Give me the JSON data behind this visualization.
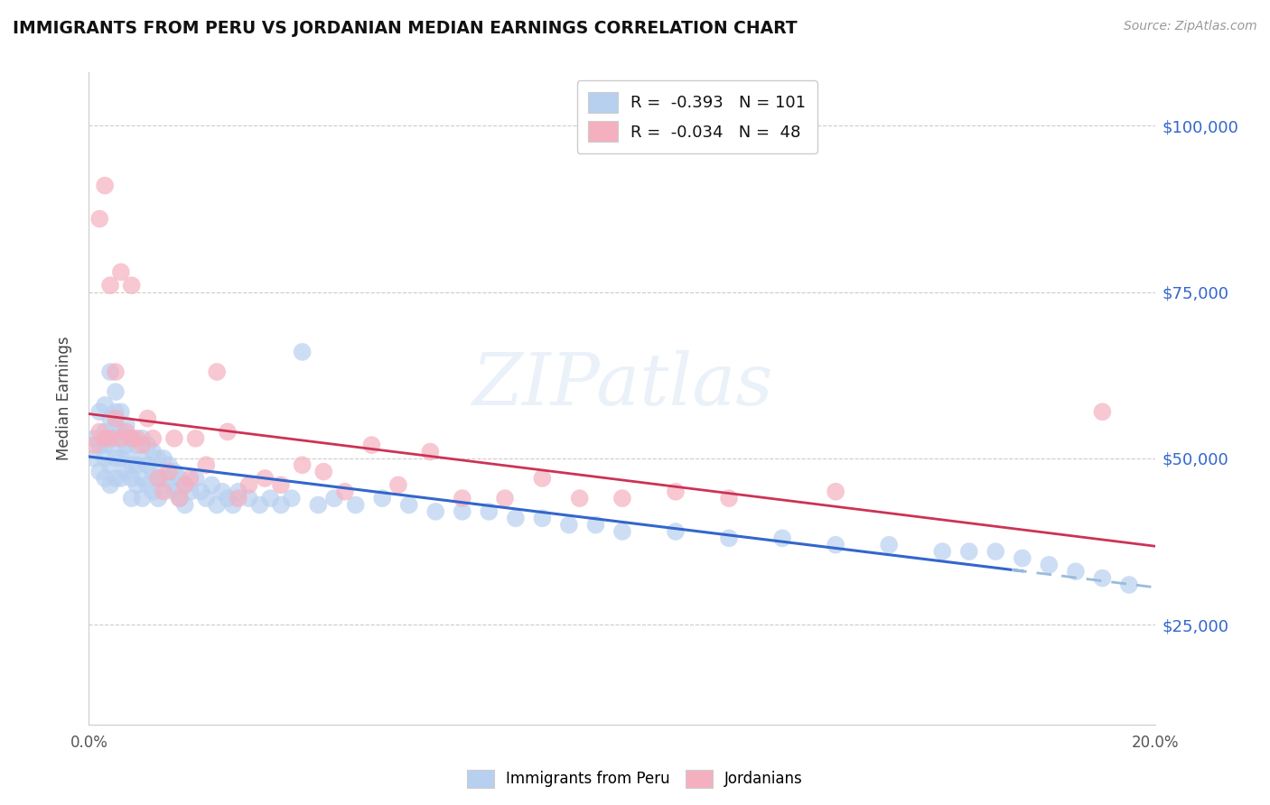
{
  "title": "IMMIGRANTS FROM PERU VS JORDANIAN MEDIAN EARNINGS CORRELATION CHART",
  "source": "Source: ZipAtlas.com",
  "ylabel": "Median Earnings",
  "y_ticks": [
    25000,
    50000,
    75000,
    100000
  ],
  "y_tick_labels": [
    "$25,000",
    "$50,000",
    "$75,000",
    "$100,000"
  ],
  "xlim": [
    0.0,
    0.2
  ],
  "ylim": [
    10000,
    108000
  ],
  "peru_R": -0.393,
  "peru_N": 101,
  "jordan_R": -0.034,
  "jordan_N": 48,
  "peru_color": "#b8d0f0",
  "jordan_color": "#f5b0c0",
  "peru_line_color": "#3366cc",
  "jordan_line_color": "#cc3355",
  "dashed_color": "#99bbdd",
  "legend_label_peru": "Immigrants from Peru",
  "legend_label_jordan": "Jordanians",
  "watermark": "ZIPatlas",
  "peru_x": [
    0.001,
    0.001,
    0.002,
    0.002,
    0.002,
    0.003,
    0.003,
    0.003,
    0.003,
    0.003,
    0.004,
    0.004,
    0.004,
    0.004,
    0.004,
    0.005,
    0.005,
    0.005,
    0.005,
    0.005,
    0.005,
    0.006,
    0.006,
    0.006,
    0.006,
    0.007,
    0.007,
    0.007,
    0.007,
    0.008,
    0.008,
    0.008,
    0.008,
    0.009,
    0.009,
    0.009,
    0.01,
    0.01,
    0.01,
    0.01,
    0.011,
    0.011,
    0.011,
    0.012,
    0.012,
    0.012,
    0.013,
    0.013,
    0.013,
    0.014,
    0.014,
    0.015,
    0.015,
    0.016,
    0.016,
    0.017,
    0.017,
    0.018,
    0.018,
    0.019,
    0.02,
    0.021,
    0.022,
    0.023,
    0.024,
    0.025,
    0.026,
    0.027,
    0.028,
    0.03,
    0.032,
    0.034,
    0.036,
    0.038,
    0.04,
    0.043,
    0.046,
    0.05,
    0.055,
    0.06,
    0.065,
    0.07,
    0.075,
    0.08,
    0.085,
    0.09,
    0.095,
    0.1,
    0.11,
    0.12,
    0.13,
    0.14,
    0.15,
    0.16,
    0.165,
    0.17,
    0.175,
    0.18,
    0.185,
    0.19,
    0.195
  ],
  "peru_y": [
    53000,
    50000,
    57000,
    52000,
    48000,
    58000,
    54000,
    50000,
    47000,
    52000,
    63000,
    56000,
    52000,
    49000,
    46000,
    57000,
    53000,
    50000,
    47000,
    60000,
    55000,
    54000,
    50000,
    47000,
    57000,
    55000,
    51000,
    48000,
    52000,
    53000,
    49000,
    47000,
    44000,
    52000,
    49000,
    46000,
    53000,
    50000,
    47000,
    44000,
    52000,
    49000,
    46000,
    51000,
    48000,
    45000,
    50000,
    47000,
    44000,
    50000,
    47000,
    49000,
    46000,
    48000,
    45000,
    47000,
    44000,
    46000,
    43000,
    45000,
    47000,
    45000,
    44000,
    46000,
    43000,
    45000,
    44000,
    43000,
    45000,
    44000,
    43000,
    44000,
    43000,
    44000,
    66000,
    43000,
    44000,
    43000,
    44000,
    43000,
    42000,
    42000,
    42000,
    41000,
    41000,
    40000,
    40000,
    39000,
    39000,
    38000,
    38000,
    37000,
    37000,
    36000,
    36000,
    36000,
    35000,
    34000,
    33000,
    32000,
    31000
  ],
  "jordan_x": [
    0.001,
    0.002,
    0.002,
    0.003,
    0.003,
    0.004,
    0.004,
    0.005,
    0.005,
    0.006,
    0.006,
    0.007,
    0.008,
    0.008,
    0.009,
    0.01,
    0.011,
    0.012,
    0.013,
    0.014,
    0.015,
    0.016,
    0.017,
    0.018,
    0.019,
    0.02,
    0.022,
    0.024,
    0.026,
    0.028,
    0.03,
    0.033,
    0.036,
    0.04,
    0.044,
    0.048,
    0.053,
    0.058,
    0.064,
    0.07,
    0.078,
    0.085,
    0.092,
    0.1,
    0.11,
    0.12,
    0.14,
    0.19
  ],
  "jordan_y": [
    52000,
    54000,
    86000,
    53000,
    91000,
    53000,
    76000,
    56000,
    63000,
    53000,
    78000,
    54000,
    53000,
    76000,
    53000,
    52000,
    56000,
    53000,
    47000,
    45000,
    48000,
    53000,
    44000,
    46000,
    47000,
    53000,
    49000,
    63000,
    54000,
    44000,
    46000,
    47000,
    46000,
    49000,
    48000,
    45000,
    52000,
    46000,
    51000,
    44000,
    44000,
    47000,
    44000,
    44000,
    45000,
    44000,
    45000,
    57000
  ]
}
